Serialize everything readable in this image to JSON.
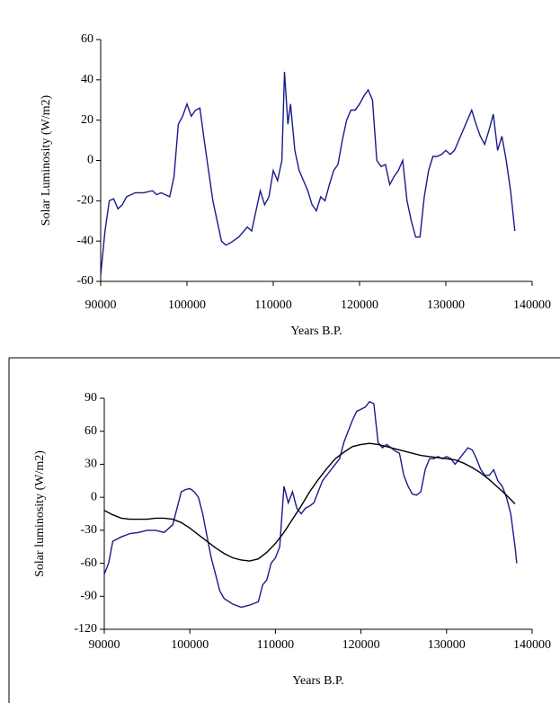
{
  "chart_data": [
    {
      "type": "line",
      "x_label": "Years B.P.",
      "y_label": "Solar Luminosity (W/m2)",
      "xlim": [
        90000,
        140000
      ],
      "xticks": [
        90000,
        100000,
        110000,
        120000,
        130000,
        140000
      ],
      "ylim": [
        -60,
        60
      ],
      "yticks": [
        -60,
        -40,
        -20,
        0,
        20,
        40,
        60
      ],
      "series": [
        {
          "color": "#1a1a8c",
          "x": [
            90000,
            90500,
            91000,
            91500,
            92000,
            92500,
            93000,
            94000,
            95000,
            96000,
            96500,
            97000,
            97500,
            98000,
            98500,
            99000,
            99500,
            100000,
            100500,
            101000,
            101500,
            102000,
            102500,
            103000,
            103500,
            104000,
            104500,
            105000,
            106000,
            107000,
            107500,
            108000,
            108500,
            109000,
            109500,
            110000,
            110500,
            111000,
            111300,
            111700,
            112000,
            112500,
            113000,
            113500,
            114000,
            114500,
            115000,
            115500,
            116000,
            116500,
            117000,
            117500,
            118000,
            118500,
            119000,
            119500,
            120000,
            120500,
            121000,
            121500,
            122000,
            122500,
            123000,
            123500,
            124000,
            124500,
            125000,
            125500,
            126000,
            126500,
            127000,
            127500,
            128000,
            128500,
            129000,
            129500,
            130000,
            130500,
            131000,
            131500,
            132000,
            132500,
            133000,
            133500,
            134000,
            134500,
            135000,
            135500,
            136000,
            136500,
            137000,
            137500,
            138000
          ],
          "values": [
            -57,
            -35,
            -20,
            -19,
            -24,
            -22,
            -18,
            -16,
            -16,
            -15,
            -17,
            -16,
            -17,
            -18,
            -8,
            18,
            22,
            28,
            22,
            25,
            26,
            10,
            -5,
            -20,
            -30,
            -40,
            -42,
            -41,
            -38,
            -33,
            -35,
            -25,
            -15,
            -22,
            -18,
            -5,
            -10,
            0,
            44,
            18,
            28,
            5,
            -5,
            -10,
            -15,
            -22,
            -25,
            -18,
            -20,
            -12,
            -5,
            -2,
            10,
            20,
            25,
            25,
            28,
            32,
            35,
            30,
            0,
            -3,
            -2,
            -12,
            -8,
            -5,
            0,
            -20,
            -30,
            -38,
            -38,
            -18,
            -5,
            2,
            2,
            3,
            5,
            3,
            5,
            10,
            15,
            20,
            25,
            18,
            12,
            8,
            15,
            23,
            5,
            12,
            0,
            -15,
            -35
          ]
        }
      ]
    },
    {
      "type": "line",
      "x_label": "Years B.P.",
      "y_label": "Solar luminosity (W/m2)",
      "xlim": [
        90000,
        140000
      ],
      "xticks": [
        90000,
        100000,
        110000,
        120000,
        130000,
        140000
      ],
      "ylim": [
        -120,
        90
      ],
      "yticks": [
        -120,
        -90,
        -60,
        -30,
        0,
        30,
        60,
        90
      ],
      "series": [
        {
          "color": "#1a1a8c",
          "x": [
            90000,
            90500,
            91000,
            92000,
            93000,
            94000,
            95000,
            96000,
            97000,
            98000,
            98500,
            99000,
            99500,
            100000,
            100500,
            101000,
            101500,
            102000,
            102500,
            103000,
            103500,
            104000,
            105000,
            106000,
            107000,
            108000,
            108500,
            109000,
            109500,
            110000,
            110500,
            111000,
            111500,
            112000,
            112500,
            113000,
            113500,
            114000,
            114500,
            115000,
            115500,
            116000,
            116500,
            117000,
            117500,
            118000,
            118500,
            119000,
            119500,
            120000,
            120500,
            121000,
            121500,
            122000,
            122500,
            123000,
            124000,
            124500,
            125000,
            125500,
            126000,
            126500,
            127000,
            127500,
            128000,
            128500,
            129000,
            129500,
            130000,
            130500,
            131000,
            132000,
            132500,
            133000,
            133500,
            134000,
            134500,
            135000,
            135500,
            136000,
            136500,
            137000,
            137500,
            138000,
            138200
          ],
          "values": [
            -70,
            -60,
            -40,
            -36,
            -33,
            -32,
            -30,
            -30,
            -32,
            -25,
            -10,
            5,
            7,
            8,
            5,
            0,
            -15,
            -35,
            -55,
            -70,
            -85,
            -92,
            -97,
            -100,
            -98,
            -95,
            -80,
            -75,
            -60,
            -55,
            -45,
            10,
            -5,
            5,
            -10,
            -15,
            -10,
            -8,
            -5,
            5,
            15,
            20,
            25,
            30,
            35,
            50,
            60,
            70,
            78,
            80,
            82,
            87,
            85,
            50,
            45,
            48,
            42,
            40,
            20,
            10,
            3,
            2,
            5,
            25,
            35,
            35,
            37,
            35,
            37,
            35,
            30,
            40,
            45,
            43,
            35,
            25,
            20,
            20,
            25,
            15,
            10,
            0,
            -15,
            -45,
            -60
          ]
        },
        {
          "color": "#000000",
          "x": [
            90000,
            91000,
            92000,
            93000,
            94000,
            95000,
            96000,
            97000,
            98000,
            99000,
            100000,
            101000,
            102000,
            103000,
            104000,
            105000,
            106000,
            107000,
            108000,
            109000,
            110000,
            111000,
            112000,
            113000,
            114000,
            115000,
            116000,
            117000,
            118000,
            119000,
            120000,
            121000,
            122000,
            123000,
            124000,
            125000,
            126000,
            127000,
            128000,
            129000,
            130000,
            131000,
            132000,
            133000,
            134000,
            135000,
            136000,
            137000,
            138000
          ],
          "values": [
            -12,
            -16,
            -19,
            -20,
            -20,
            -20,
            -19,
            -19,
            -20,
            -23,
            -28,
            -34,
            -40,
            -46,
            -51,
            -55,
            -57,
            -58,
            -56,
            -50,
            -42,
            -32,
            -20,
            -8,
            5,
            16,
            26,
            35,
            41,
            46,
            48,
            49,
            48,
            46,
            44,
            42,
            40,
            38,
            37,
            36,
            35,
            34,
            31,
            27,
            22,
            16,
            9,
            2,
            -6
          ]
        }
      ]
    }
  ]
}
